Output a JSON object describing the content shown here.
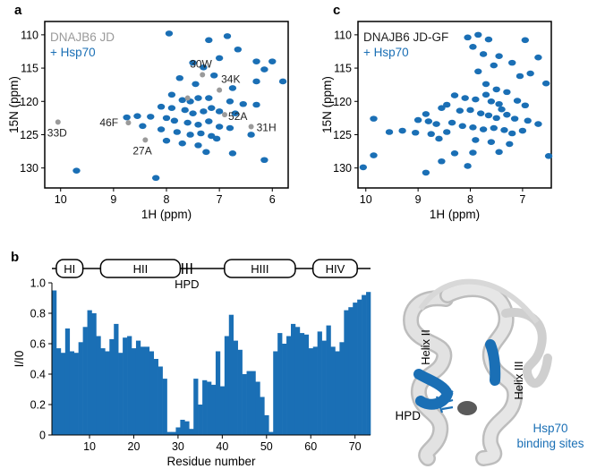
{
  "panel_labels": {
    "a": "a",
    "b": "b",
    "c": "c"
  },
  "colors": {
    "blue": "#1a6fb5",
    "gray": "#9a9a9a",
    "dark": "#222222",
    "struct_gray": "#d4d4d4"
  },
  "structure": {
    "helix2_label": "Helix II",
    "helix3_label": "Helix III",
    "hpd_label": "HPD",
    "binding_label_line1": "Hsp70",
    "binding_label_line2": "binding sites"
  },
  "chart_data": [
    {
      "type": "scatter",
      "panel": "a",
      "xlabel": "1H (ppm)",
      "ylabel": "15N (ppm)",
      "xlim": [
        10.3,
        5.7
      ],
      "ylim": [
        108,
        133
      ],
      "x_ticks": [
        10,
        9,
        8,
        7,
        6
      ],
      "y_ticks": [
        110,
        115,
        120,
        125,
        130
      ],
      "legend": [
        "DNAJB6 JD",
        "+ Hsp70"
      ],
      "gray_points": [
        {
          "x": 7.32,
          "y": 116.0
        },
        {
          "x": 7.0,
          "y": 118.3
        },
        {
          "x": 6.9,
          "y": 122.0
        },
        {
          "x": 6.4,
          "y": 123.8
        },
        {
          "x": 8.72,
          "y": 123.2
        },
        {
          "x": 8.4,
          "y": 125.8
        },
        {
          "x": 10.05,
          "y": 123.1
        },
        {
          "x": 7.6,
          "y": 119.5
        }
      ],
      "point_labels": [
        {
          "text": "30W",
          "x": 7.32,
          "y": 116.0
        },
        {
          "text": "34K",
          "x": 7.0,
          "y": 118.3
        },
        {
          "text": "52A",
          "x": 6.9,
          "y": 122.0
        },
        {
          "text": "31H",
          "x": 6.4,
          "y": 123.8
        },
        {
          "text": "46F",
          "x": 8.72,
          "y": 123.2
        },
        {
          "text": "27A",
          "x": 8.4,
          "y": 125.8
        },
        {
          "text": "33D",
          "x": 10.05,
          "y": 123.1
        }
      ],
      "blue_points": [
        {
          "x": 6.85,
          "y": 110.2
        },
        {
          "x": 6.65,
          "y": 112.2
        },
        {
          "x": 7.2,
          "y": 110.8
        },
        {
          "x": 7.95,
          "y": 109.8
        },
        {
          "x": 7.0,
          "y": 113.5
        },
        {
          "x": 6.3,
          "y": 114.0
        },
        {
          "x": 6.0,
          "y": 114.0
        },
        {
          "x": 7.5,
          "y": 114.2
        },
        {
          "x": 7.3,
          "y": 114.9
        },
        {
          "x": 6.15,
          "y": 115.2
        },
        {
          "x": 7.1,
          "y": 116.1
        },
        {
          "x": 6.3,
          "y": 117.0
        },
        {
          "x": 5.8,
          "y": 117.0
        },
        {
          "x": 6.75,
          "y": 118.0
        },
        {
          "x": 7.9,
          "y": 119.0
        },
        {
          "x": 7.7,
          "y": 119.8
        },
        {
          "x": 7.55,
          "y": 120.0
        },
        {
          "x": 7.4,
          "y": 119.5
        },
        {
          "x": 7.2,
          "y": 119.5
        },
        {
          "x": 6.8,
          "y": 120.0
        },
        {
          "x": 6.55,
          "y": 120.4
        },
        {
          "x": 6.3,
          "y": 120.5
        },
        {
          "x": 8.1,
          "y": 120.8
        },
        {
          "x": 7.9,
          "y": 121.0
        },
        {
          "x": 7.65,
          "y": 121.3
        },
        {
          "x": 7.5,
          "y": 121.8
        },
        {
          "x": 7.3,
          "y": 121.5
        },
        {
          "x": 7.15,
          "y": 121.0
        },
        {
          "x": 7.0,
          "y": 121.5
        },
        {
          "x": 6.7,
          "y": 121.8
        },
        {
          "x": 8.55,
          "y": 122.2
        },
        {
          "x": 8.75,
          "y": 122.4
        },
        {
          "x": 8.3,
          "y": 122.3
        },
        {
          "x": 8.0,
          "y": 122.5
        },
        {
          "x": 7.85,
          "y": 122.9
        },
        {
          "x": 7.6,
          "y": 123.2
        },
        {
          "x": 7.4,
          "y": 123.5
        },
        {
          "x": 7.2,
          "y": 123.0
        },
        {
          "x": 7.0,
          "y": 123.8
        },
        {
          "x": 6.8,
          "y": 124.0
        },
        {
          "x": 8.45,
          "y": 123.7
        },
        {
          "x": 8.1,
          "y": 124.2
        },
        {
          "x": 7.8,
          "y": 124.6
        },
        {
          "x": 7.55,
          "y": 125.0
        },
        {
          "x": 7.35,
          "y": 124.8
        },
        {
          "x": 7.15,
          "y": 125.2
        },
        {
          "x": 8.0,
          "y": 125.9
        },
        {
          "x": 7.7,
          "y": 126.3
        },
        {
          "x": 7.4,
          "y": 126.6
        },
        {
          "x": 7.25,
          "y": 127.6
        },
        {
          "x": 6.75,
          "y": 127.8
        },
        {
          "x": 6.15,
          "y": 128.8
        },
        {
          "x": 7.05,
          "y": 125.6
        },
        {
          "x": 8.2,
          "y": 131.5
        },
        {
          "x": 9.7,
          "y": 130.4
        },
        {
          "x": 6.4,
          "y": 125.0
        },
        {
          "x": 7.45,
          "y": 117.4
        },
        {
          "x": 7.75,
          "y": 116.5
        }
      ]
    },
    {
      "type": "scatter",
      "panel": "c",
      "xlabel": "1H (ppm)",
      "ylabel": "15N (ppm)",
      "xlim": [
        10.15,
        6.45
      ],
      "ylim": [
        108,
        133
      ],
      "x_ticks": [
        10,
        9,
        8,
        7
      ],
      "y_ticks": [
        110,
        115,
        120,
        125,
        130
      ],
      "legend": [
        "DNAJB6 JD-GF",
        "+ Hsp70"
      ],
      "blue_points": [
        {
          "x": 8.05,
          "y": 110.4
        },
        {
          "x": 7.85,
          "y": 110.0
        },
        {
          "x": 7.65,
          "y": 110.7
        },
        {
          "x": 7.95,
          "y": 111.8
        },
        {
          "x": 6.95,
          "y": 110.8
        },
        {
          "x": 7.75,
          "y": 112.9
        },
        {
          "x": 7.45,
          "y": 113.2
        },
        {
          "x": 7.2,
          "y": 114.2
        },
        {
          "x": 6.7,
          "y": 113.4
        },
        {
          "x": 7.55,
          "y": 114.6
        },
        {
          "x": 7.85,
          "y": 115.5
        },
        {
          "x": 7.05,
          "y": 116.2
        },
        {
          "x": 6.85,
          "y": 115.8
        },
        {
          "x": 6.55,
          "y": 117.3
        },
        {
          "x": 7.7,
          "y": 117.4
        },
        {
          "x": 7.5,
          "y": 118.2
        },
        {
          "x": 7.3,
          "y": 118.6
        },
        {
          "x": 8.3,
          "y": 119.1
        },
        {
          "x": 8.1,
          "y": 119.5
        },
        {
          "x": 7.9,
          "y": 119.7
        },
        {
          "x": 7.6,
          "y": 120.0
        },
        {
          "x": 7.45,
          "y": 120.4
        },
        {
          "x": 7.1,
          "y": 119.9
        },
        {
          "x": 6.95,
          "y": 120.6
        },
        {
          "x": 8.45,
          "y": 120.5
        },
        {
          "x": 8.55,
          "y": 121.0
        },
        {
          "x": 8.2,
          "y": 121.4
        },
        {
          "x": 8.0,
          "y": 121.3
        },
        {
          "x": 7.8,
          "y": 121.8
        },
        {
          "x": 7.65,
          "y": 122.1
        },
        {
          "x": 7.5,
          "y": 122.5
        },
        {
          "x": 7.3,
          "y": 122.0
        },
        {
          "x": 7.15,
          "y": 122.6
        },
        {
          "x": 6.9,
          "y": 122.9
        },
        {
          "x": 6.7,
          "y": 123.4
        },
        {
          "x": 9.0,
          "y": 122.8
        },
        {
          "x": 8.8,
          "y": 123.0
        },
        {
          "x": 8.65,
          "y": 123.4
        },
        {
          "x": 8.35,
          "y": 123.2
        },
        {
          "x": 8.15,
          "y": 123.7
        },
        {
          "x": 7.95,
          "y": 123.9
        },
        {
          "x": 7.75,
          "y": 124.2
        },
        {
          "x": 7.55,
          "y": 124.0
        },
        {
          "x": 7.35,
          "y": 124.3
        },
        {
          "x": 7.2,
          "y": 124.8
        },
        {
          "x": 7.0,
          "y": 124.4
        },
        {
          "x": 9.3,
          "y": 124.4
        },
        {
          "x": 9.55,
          "y": 124.6
        },
        {
          "x": 8.75,
          "y": 124.9
        },
        {
          "x": 8.45,
          "y": 124.6
        },
        {
          "x": 8.6,
          "y": 125.6
        },
        {
          "x": 7.9,
          "y": 125.8
        },
        {
          "x": 7.6,
          "y": 126.1
        },
        {
          "x": 7.25,
          "y": 126.4
        },
        {
          "x": 9.85,
          "y": 122.6
        },
        {
          "x": 9.05,
          "y": 124.7
        },
        {
          "x": 8.3,
          "y": 127.8
        },
        {
          "x": 7.95,
          "y": 127.7
        },
        {
          "x": 7.45,
          "y": 127.6
        },
        {
          "x": 6.5,
          "y": 128.2
        },
        {
          "x": 8.55,
          "y": 129.0
        },
        {
          "x": 10.05,
          "y": 129.9
        },
        {
          "x": 9.85,
          "y": 128.1
        },
        {
          "x": 8.85,
          "y": 130.7
        },
        {
          "x": 8.05,
          "y": 129.7
        },
        {
          "x": 7.7,
          "y": 119.0
        },
        {
          "x": 7.4,
          "y": 121.2
        },
        {
          "x": 8.85,
          "y": 121.9
        }
      ]
    },
    {
      "type": "bar",
      "panel": "b",
      "xlabel": "Residue number",
      "ylabel": "I/I0",
      "xlim": [
        1.5,
        73.5
      ],
      "ylim": [
        0,
        1.0
      ],
      "x_ticks": [
        10,
        20,
        30,
        40,
        50,
        60,
        70
      ],
      "y_ticks": [
        0,
        0.2,
        0.4,
        0.6,
        0.8,
        1.0
      ],
      "y_tick_labels": [
        "0",
        "0.2",
        "0.4",
        "0.6",
        "0.8",
        "1.0"
      ],
      "domains": [
        {
          "label": "HI",
          "start": 3,
          "end": 8
        },
        {
          "label": "HII",
          "start": 13,
          "end": 30
        },
        {
          "label": "HIII",
          "start": 41,
          "end": 56
        },
        {
          "label": "HIV",
          "start": 61,
          "end": 70
        }
      ],
      "hpd": {
        "label": "HPD",
        "residues": [
          31,
          32,
          33
        ]
      },
      "residues": [
        2,
        3,
        4,
        5,
        6,
        7,
        8,
        9,
        10,
        11,
        12,
        13,
        14,
        15,
        16,
        17,
        18,
        19,
        20,
        21,
        22,
        23,
        24,
        25,
        26,
        27,
        28,
        29,
        30,
        31,
        32,
        33,
        34,
        35,
        36,
        37,
        38,
        39,
        40,
        41,
        42,
        43,
        44,
        45,
        46,
        47,
        48,
        49,
        50,
        51,
        52,
        53,
        54,
        55,
        56,
        57,
        58,
        59,
        60,
        61,
        62,
        63,
        64,
        65,
        66,
        67,
        68,
        69,
        70,
        71,
        72,
        73
      ],
      "values": [
        0.95,
        0.57,
        0.54,
        0.7,
        0.55,
        0.54,
        0.61,
        0.71,
        0.82,
        0.8,
        0.65,
        0.57,
        0.55,
        0.63,
        0.73,
        0.54,
        0.64,
        0.65,
        0.57,
        0.62,
        0.58,
        0.58,
        0.55,
        0.5,
        0.45,
        0.37,
        0.02,
        0.02,
        0.05,
        0.1,
        0.09,
        0.04,
        0.37,
        0.2,
        0.36,
        0.35,
        0.33,
        0.55,
        0.32,
        0.65,
        0.79,
        0.62,
        0.56,
        0.4,
        0.42,
        0.42,
        0.35,
        0.25,
        0.13,
        0.02,
        0.55,
        0.67,
        0.6,
        0.65,
        0.73,
        0.71,
        0.67,
        0.66,
        0.57,
        0.58,
        0.68,
        0.62,
        0.72,
        0.58,
        0.55,
        0.61,
        0.82,
        0.84,
        0.87,
        0.89,
        0.92,
        0.94
      ]
    }
  ]
}
